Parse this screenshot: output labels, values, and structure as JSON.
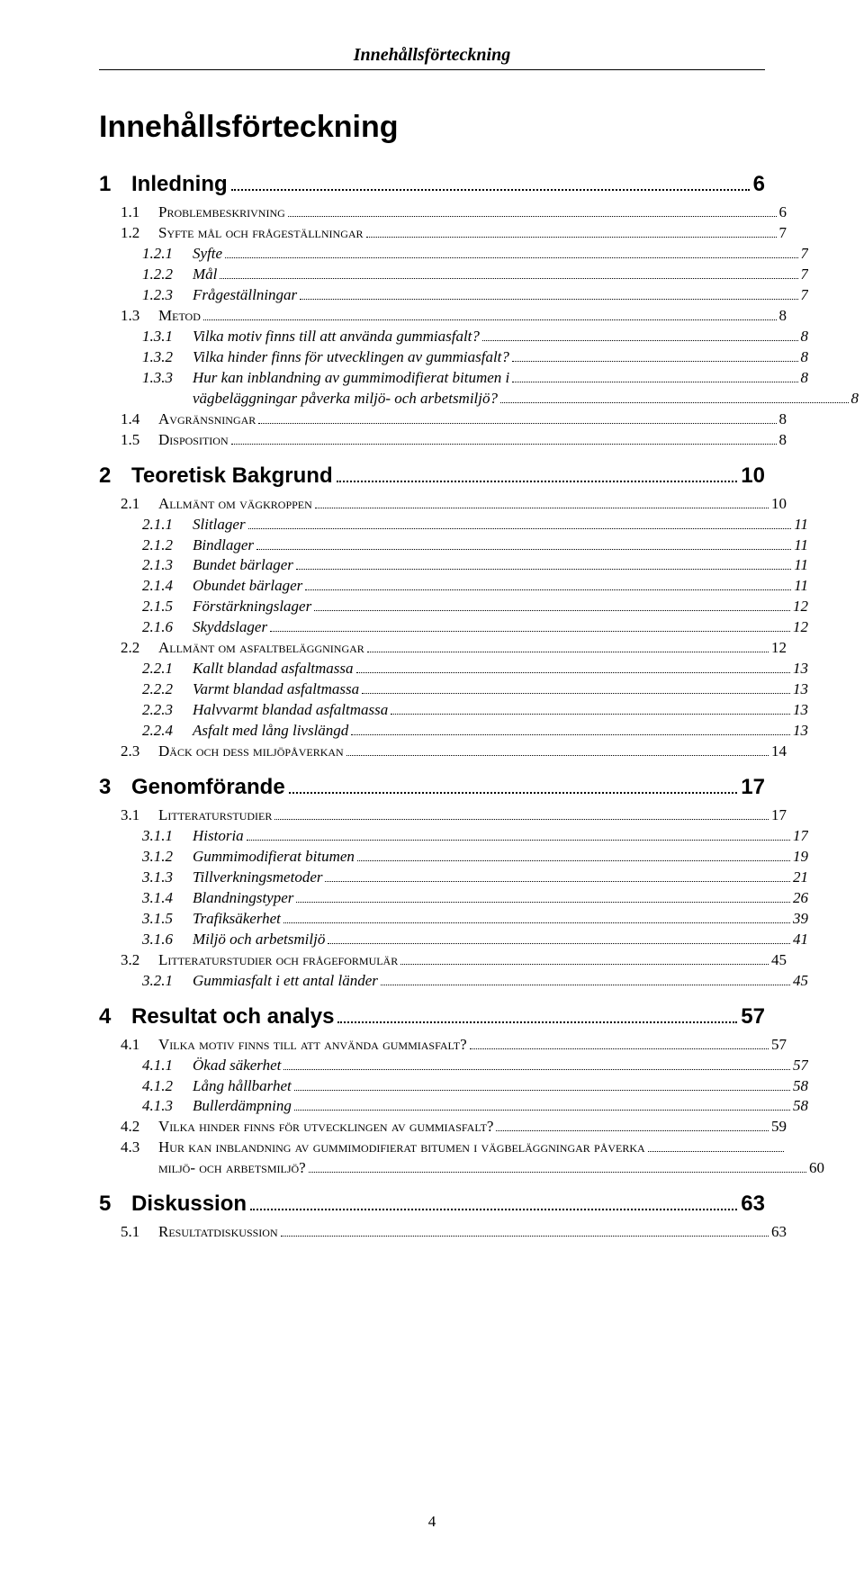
{
  "running_header": "Innehållsförteckning",
  "doc_title": "Innehållsförteckning",
  "footer_page": "4",
  "toc": [
    {
      "level": 1,
      "num": "1",
      "label": "Inledning",
      "page": "6"
    },
    {
      "level": 2,
      "num": "1.1",
      "label": "Problembeskrivning",
      "page": "6"
    },
    {
      "level": 2,
      "num": "1.2",
      "label": "Syfte mål och frågeställningar",
      "page": "7"
    },
    {
      "level": 3,
      "num": "1.2.1",
      "label": "Syfte",
      "page": "7"
    },
    {
      "level": 3,
      "num": "1.2.2",
      "label": "Mål",
      "page": "7"
    },
    {
      "level": 3,
      "num": "1.2.3",
      "label": "Frågeställningar",
      "page": "7"
    },
    {
      "level": 2,
      "num": "1.3",
      "label": "Metod",
      "page": "8"
    },
    {
      "level": 3,
      "num": "1.3.1",
      "label": "Vilka motiv finns till att använda gummiasfalt?",
      "page": "8"
    },
    {
      "level": 3,
      "num": "1.3.2",
      "label": "Vilka hinder finns för utvecklingen av gummiasfalt?",
      "page": "8"
    },
    {
      "level": 3,
      "num": "1.3.3",
      "label": "Hur kan inblandning av gummimodifierat bitumen i",
      "page": "8",
      "continued": true
    },
    {
      "level": 3,
      "num": "",
      "label": "vägbeläggningar påverka miljö- och arbetsmiljö?",
      "page": "8",
      "cont": true
    },
    {
      "level": 2,
      "num": "1.4",
      "label": "Avgränsningar",
      "page": "8"
    },
    {
      "level": 2,
      "num": "1.5",
      "label": "Disposition",
      "page": "8"
    },
    {
      "level": 1,
      "num": "2",
      "label": "Teoretisk Bakgrund",
      "page": "10"
    },
    {
      "level": 2,
      "num": "2.1",
      "label": "Allmänt om vägkroppen",
      "page": "10"
    },
    {
      "level": 3,
      "num": "2.1.1",
      "label": "Slitlager",
      "page": "11"
    },
    {
      "level": 3,
      "num": "2.1.2",
      "label": "Bindlager",
      "page": "11"
    },
    {
      "level": 3,
      "num": "2.1.3",
      "label": "Bundet bärlager",
      "page": "11"
    },
    {
      "level": 3,
      "num": "2.1.4",
      "label": "Obundet bärlager",
      "page": "11"
    },
    {
      "level": 3,
      "num": "2.1.5",
      "label": "Förstärkningslager",
      "page": "12"
    },
    {
      "level": 3,
      "num": "2.1.6",
      "label": "Skyddslager",
      "page": "12"
    },
    {
      "level": 2,
      "num": "2.2",
      "label": "Allmänt om asfaltbeläggningar",
      "page": "12"
    },
    {
      "level": 3,
      "num": "2.2.1",
      "label": "Kallt blandad asfaltmassa",
      "page": "13"
    },
    {
      "level": 3,
      "num": "2.2.2",
      "label": "Varmt blandad asfaltmassa",
      "page": "13"
    },
    {
      "level": 3,
      "num": "2.2.3",
      "label": "Halvvarmt blandad asfaltmassa",
      "page": "13"
    },
    {
      "level": 3,
      "num": "2.2.4",
      "label": "Asfalt med lång livslängd",
      "page": "13"
    },
    {
      "level": 2,
      "num": "2.3",
      "label": "Däck och dess miljöpåverkan",
      "page": "14"
    },
    {
      "level": 1,
      "num": "3",
      "label": "Genomförande",
      "page": "17"
    },
    {
      "level": 2,
      "num": "3.1",
      "label": "Litteraturstudier",
      "page": "17"
    },
    {
      "level": 3,
      "num": "3.1.1",
      "label": "Historia",
      "page": "17"
    },
    {
      "level": 3,
      "num": "3.1.2",
      "label": "Gummimodifierat bitumen",
      "page": "19"
    },
    {
      "level": 3,
      "num": "3.1.3",
      "label": "Tillverkningsmetoder",
      "page": "21"
    },
    {
      "level": 3,
      "num": "3.1.4",
      "label": "Blandningstyper",
      "page": "26"
    },
    {
      "level": 3,
      "num": "3.1.5",
      "label": "Trafiksäkerhet",
      "page": "39"
    },
    {
      "level": 3,
      "num": "3.1.6",
      "label": "Miljö och arbetsmiljö",
      "page": "41"
    },
    {
      "level": 2,
      "num": "3.2",
      "label": "Litteraturstudier och frågeformulär",
      "page": "45"
    },
    {
      "level": 3,
      "num": "3.2.1",
      "label": "Gummiasfalt i ett antal länder",
      "page": "45"
    },
    {
      "level": 1,
      "num": "4",
      "label": "Resultat och analys",
      "page": "57"
    },
    {
      "level": 2,
      "num": "4.1",
      "label": "Vilka motiv finns till att använda gummiasfalt?",
      "page": "57"
    },
    {
      "level": 3,
      "num": "4.1.1",
      "label": "Ökad säkerhet",
      "page": "57"
    },
    {
      "level": 3,
      "num": "4.1.2",
      "label": "Lång hållbarhet",
      "page": "58"
    },
    {
      "level": 3,
      "num": "4.1.3",
      "label": "Bullerdämpning",
      "page": "58"
    },
    {
      "level": 2,
      "num": "4.2",
      "label": "Vilka hinder finns för utvecklingen av gummiasfalt?",
      "page": "59"
    },
    {
      "level": 2,
      "num": "4.3",
      "label": "Hur kan inblandning av gummimodifierat bitumen i vägbeläggningar påverka",
      "page": "",
      "continued": true
    },
    {
      "level": 2,
      "num": "",
      "label": "miljö- och arbetsmiljö?",
      "page": "60",
      "cont": true
    },
    {
      "level": 1,
      "num": "5",
      "label": "Diskussion",
      "page": "63"
    },
    {
      "level": 2,
      "num": "5.1",
      "label": "Resultatdiskussion",
      "page": "63"
    }
  ]
}
